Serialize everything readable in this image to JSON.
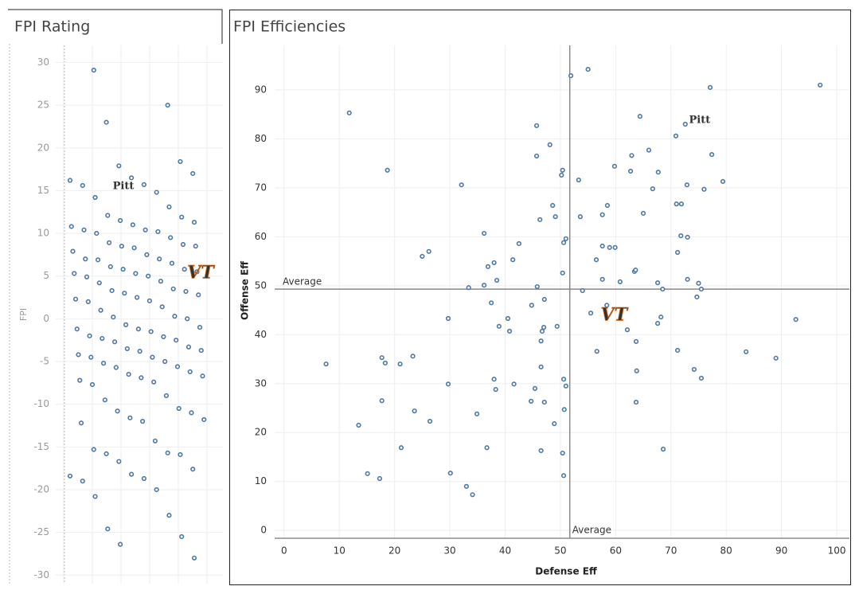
{
  "chart_data": [
    {
      "type": "strip",
      "title": "FPI Rating",
      "y_label": "FPI",
      "color": "#4e79a7",
      "grid": true,
      "ylim": [
        -31,
        32
      ],
      "yticks": [
        -30,
        -25,
        -20,
        -15,
        -10,
        -5,
        0,
        5,
        10,
        15,
        20,
        25,
        30
      ],
      "values": [
        29.1,
        25,
        23,
        18.4,
        17.9,
        17,
        16.5,
        16.2,
        15.7,
        15.6,
        14.8,
        14.2,
        13.1,
        12.1,
        11.9,
        11.5,
        11.3,
        11,
        10.8,
        10.4,
        10.4,
        10.2,
        10,
        9.5,
        8.9,
        8.7,
        8.5,
        8.5,
        8.3,
        7.9,
        7.5,
        7,
        7,
        6.9,
        6.5,
        6.1,
        5.8,
        5.8,
        5.5,
        5.3,
        5.3,
        5,
        4.9,
        4.4,
        4.2,
        3.5,
        3.3,
        3.2,
        3,
        2.8,
        2.5,
        2.3,
        2.1,
        2,
        1.4,
        1,
        0.3,
        0.2,
        0,
        -0.7,
        -1,
        -1.2,
        -1.2,
        -1.5,
        -2,
        -2.1,
        -2.3,
        -2.5,
        -2.7,
        -3.3,
        -3.5,
        -3.7,
        -3.8,
        -4.2,
        -4.5,
        -4.5,
        -5,
        -5.2,
        -5.6,
        -5.7,
        -6.2,
        -6.5,
        -6.7,
        -6.9,
        -7.2,
        -7.4,
        -7.7,
        -9,
        -9.5,
        -10.5,
        -10.8,
        -11,
        -11.6,
        -11.8,
        -12,
        -12.2,
        -14.3,
        -15.3,
        -15.7,
        -15.8,
        -15.9,
        -16.7,
        -17.6,
        -18.2,
        -18.4,
        -18.7,
        -19,
        -20,
        -20.8,
        -23,
        -24.6,
        -25.5,
        -26.4,
        -28
      ],
      "highlights": [
        {
          "label": "Pitt",
          "value": 15.5
        },
        {
          "label": "VT",
          "value": 5.3
        }
      ]
    },
    {
      "type": "scatter",
      "title": "FPI Efficiencies",
      "x_label": "Defense Eff",
      "y_label": "Offense Eff",
      "color": "#4e79a7",
      "grid": true,
      "xlim": [
        -1.7,
        102.3
      ],
      "xticks": [
        0,
        10,
        20,
        30,
        40,
        50,
        60,
        70,
        80,
        90,
        100
      ],
      "ylim": [
        -1.6,
        99.1
      ],
      "yticks": [
        0,
        10,
        20,
        30,
        40,
        50,
        60,
        70,
        80,
        90
      ],
      "x": [
        11.8,
        18.7,
        32.1,
        51.9,
        55.0,
        77.1,
        97,
        45.7,
        48.1,
        45.7,
        50.2,
        50.4,
        53.3,
        64.4,
        72.6,
        70.9,
        77.4,
        66,
        62.9,
        59.8,
        62.7,
        66.7,
        67.7,
        79.4,
        76,
        72.9,
        71,
        71.9,
        65,
        48.6,
        49.1,
        46.3,
        53.6,
        58.5,
        57.6,
        36.2,
        42.5,
        51,
        50.6,
        26.2,
        25,
        38,
        36.9,
        41.4,
        57.6,
        58.9,
        59.9,
        56.5,
        60.8,
        57.6,
        63.4,
        63.6,
        71.2,
        71.8,
        73,
        50.4,
        38.5,
        33.4,
        36.2,
        45.8,
        54,
        67.6,
        68.5,
        73,
        75,
        75.5,
        74.7,
        47.1,
        37.5,
        44.8,
        58.4,
        55.5,
        68.2,
        67.6,
        29.7,
        40.5,
        38.9,
        40.8,
        47,
        46.7,
        49.4,
        62.1,
        46.5,
        56.6,
        63.7,
        71.2,
        83.6,
        89,
        92.6,
        7.6,
        17.7,
        18.3,
        21,
        23.3,
        46.5,
        63.8,
        74.2,
        75.5,
        38,
        29.7,
        41.6,
        38.3,
        45.4,
        50.6,
        51,
        17.7,
        23.6,
        34.9,
        44.7,
        47.1,
        63.7,
        50.7,
        26.4,
        48.9,
        13.5,
        21.2,
        36.7,
        46.5,
        50.4,
        68.6,
        15.1,
        17.3,
        30.1,
        50.6,
        33,
        34.1
      ],
      "y": [
        85.3,
        73.6,
        70.6,
        92.9,
        94.2,
        90.5,
        91,
        82.7,
        78.8,
        76.5,
        72.6,
        73.6,
        71.6,
        84.6,
        83,
        80.6,
        76.8,
        77.7,
        76.6,
        74.4,
        73.4,
        69.8,
        73.2,
        71.3,
        69.7,
        70.6,
        66.7,
        66.7,
        64.8,
        66.4,
        64.1,
        63.5,
        64.1,
        66.4,
        64.5,
        60.7,
        58.6,
        59.6,
        58.8,
        57,
        56,
        54.7,
        53.9,
        55.3,
        58.1,
        57.8,
        57.8,
        55.3,
        50.8,
        51.3,
        52.9,
        53.2,
        56.8,
        60.2,
        59.9,
        52.6,
        51.1,
        49.6,
        50.1,
        49.8,
        49,
        50.6,
        49.3,
        51.3,
        50.5,
        49.3,
        47.7,
        47.2,
        46.5,
        46,
        46,
        44.4,
        43.6,
        42.3,
        43.3,
        43.3,
        41.7,
        40.7,
        41.5,
        40.7,
        41.7,
        41,
        38.7,
        36.6,
        38.6,
        36.8,
        36.5,
        35.2,
        43.1,
        34,
        35.3,
        34.2,
        34,
        35.6,
        33.4,
        32.6,
        32.9,
        31.1,
        30.9,
        29.9,
        29.9,
        28.8,
        29,
        30.9,
        29.5,
        26.5,
        24.4,
        23.8,
        26.4,
        26.2,
        26.2,
        24.7,
        22.3,
        21.8,
        21.5,
        16.9,
        16.9,
        16.3,
        15.8,
        16.6,
        11.6,
        10.6,
        11.7,
        11.2,
        9,
        7.3
      ],
      "reference_lines": [
        {
          "axis": "x",
          "value": 51.7,
          "label": "Average"
        },
        {
          "axis": "y",
          "value": 49.3,
          "label": "Average"
        }
      ],
      "highlights": [
        {
          "label": "Pitt",
          "x": 75.2,
          "y": 83.8
        },
        {
          "label": "VT",
          "x": 59.7,
          "y": 43.9
        }
      ]
    }
  ]
}
